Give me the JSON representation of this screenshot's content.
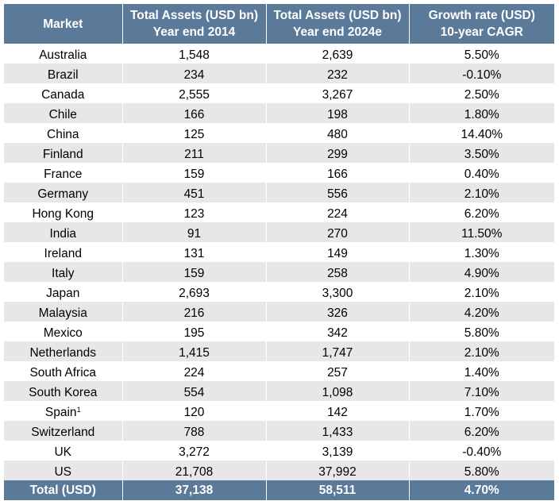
{
  "table": {
    "headers": {
      "market": "Market",
      "assets_2014_line1": "Total Assets (USD bn)",
      "assets_2014_line2": "Year end 2014",
      "assets_2024_line1": "Total Assets (USD bn)",
      "assets_2024_line2": "Year end 2024e",
      "growth_line1": "Growth rate (USD)",
      "growth_line2": "10-year CAGR"
    },
    "rows": [
      {
        "market": "Australia",
        "sup": "",
        "assets_2014": "1,548",
        "assets_2024": "2,639",
        "cagr": "5.50%"
      },
      {
        "market": "Brazil",
        "sup": "",
        "assets_2014": "234",
        "assets_2024": "232",
        "cagr": "-0.10%"
      },
      {
        "market": "Canada",
        "sup": "",
        "assets_2014": "2,555",
        "assets_2024": "3,267",
        "cagr": "2.50%"
      },
      {
        "market": "Chile",
        "sup": "",
        "assets_2014": "166",
        "assets_2024": "198",
        "cagr": "1.80%"
      },
      {
        "market": "China",
        "sup": "",
        "assets_2014": "125",
        "assets_2024": "480",
        "cagr": "14.40%"
      },
      {
        "market": "Finland",
        "sup": "",
        "assets_2014": "211",
        "assets_2024": "299",
        "cagr": "3.50%"
      },
      {
        "market": "France",
        "sup": "",
        "assets_2014": "159",
        "assets_2024": "166",
        "cagr": "0.40%"
      },
      {
        "market": "Germany",
        "sup": "",
        "assets_2014": "451",
        "assets_2024": "556",
        "cagr": "2.10%"
      },
      {
        "market": "Hong Kong",
        "sup": "",
        "assets_2014": "123",
        "assets_2024": "224",
        "cagr": "6.20%"
      },
      {
        "market": "India",
        "sup": "",
        "assets_2014": "91",
        "assets_2024": "270",
        "cagr": "11.50%"
      },
      {
        "market": "Ireland",
        "sup": "",
        "assets_2014": "131",
        "assets_2024": "149",
        "cagr": "1.30%"
      },
      {
        "market": "Italy",
        "sup": "",
        "assets_2014": "159",
        "assets_2024": "258",
        "cagr": "4.90%"
      },
      {
        "market": "Japan",
        "sup": "",
        "assets_2014": "2,693",
        "assets_2024": "3,300",
        "cagr": "2.10%"
      },
      {
        "market": "Malaysia",
        "sup": "",
        "assets_2014": "216",
        "assets_2024": "326",
        "cagr": "4.20%"
      },
      {
        "market": "Mexico",
        "sup": "",
        "assets_2014": "195",
        "assets_2024": "342",
        "cagr": "5.80%"
      },
      {
        "market": "Netherlands",
        "sup": "",
        "assets_2014": "1,415",
        "assets_2024": "1,747",
        "cagr": "2.10%"
      },
      {
        "market": "South Africa",
        "sup": "",
        "assets_2014": "224",
        "assets_2024": "257",
        "cagr": "1.40%"
      },
      {
        "market": "South Korea",
        "sup": "",
        "assets_2014": "554",
        "assets_2024": "1,098",
        "cagr": "7.10%"
      },
      {
        "market": "Spain",
        "sup": "1",
        "assets_2014": "120",
        "assets_2024": "142",
        "cagr": "1.70%"
      },
      {
        "market": "Switzerland",
        "sup": "",
        "assets_2014": "788",
        "assets_2024": "1,433",
        "cagr": "6.20%"
      },
      {
        "market": "UK",
        "sup": "",
        "assets_2014": "3,272",
        "assets_2024": "3,139",
        "cagr": "-0.40%"
      },
      {
        "market": "US",
        "sup": "",
        "assets_2014": "21,708",
        "assets_2024": "37,992",
        "cagr": "5.80%"
      }
    ],
    "total": {
      "market": "Total (USD)",
      "assets_2014": "37,138",
      "assets_2024": "58,511",
      "cagr": "4.70%"
    }
  },
  "colors": {
    "header_bg": "#5b7a9a",
    "header_text": "#ffffff",
    "stripe_bg": "#e7e7ea",
    "row_bg": "#ffffff"
  }
}
